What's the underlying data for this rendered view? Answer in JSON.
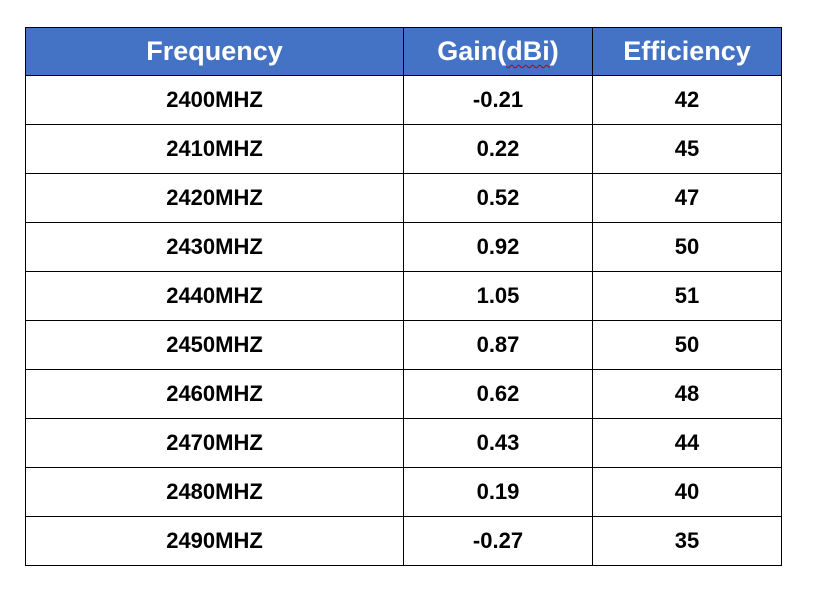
{
  "colors": {
    "header_background": "#4472c4",
    "header_text": "#ffffff",
    "cell_text": "#000000",
    "border": "#000000"
  },
  "table": {
    "headers": {
      "frequency": "Frequency",
      "gain_prefix": "Gain(",
      "gain_unit": "dBi",
      "gain_suffix": ")",
      "efficiency": "Efficiency"
    },
    "rows": [
      {
        "frequency": "2400MHZ",
        "gain": "-0.21",
        "efficiency": "42"
      },
      {
        "frequency": "2410MHZ",
        "gain": "0.22",
        "efficiency": "45"
      },
      {
        "frequency": "2420MHZ",
        "gain": "0.52",
        "efficiency": "47"
      },
      {
        "frequency": "2430MHZ",
        "gain": "0.92",
        "efficiency": "50"
      },
      {
        "frequency": "2440MHZ",
        "gain": "1.05",
        "efficiency": "51"
      },
      {
        "frequency": "2450MHZ",
        "gain": "0.87",
        "efficiency": "50"
      },
      {
        "frequency": "2460MHZ",
        "gain": "0.62",
        "efficiency": "48"
      },
      {
        "frequency": "2470MHZ",
        "gain": "0.43",
        "efficiency": "44"
      },
      {
        "frequency": "2480MHZ",
        "gain": "0.19",
        "efficiency": "40"
      },
      {
        "frequency": "2490MHZ",
        "gain": "-0.27",
        "efficiency": "35"
      }
    ]
  }
}
